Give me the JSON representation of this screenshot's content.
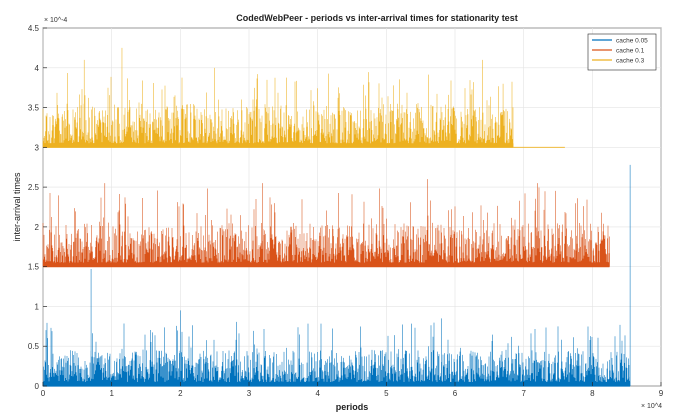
{
  "chart_data": {
    "type": "line",
    "title": "CodedWebPeer - periods vs inter-arrival times for stationarity test",
    "xlabel": "periods",
    "ylabel": "inter-arrival times",
    "x_exponent": "× 10^4",
    "y_exponent": "× 10^-4",
    "xlim": [
      0,
      9
    ],
    "ylim": [
      0,
      4.5
    ],
    "x_ticks": [
      "0",
      "1",
      "2",
      "3",
      "4",
      "5",
      "6",
      "7",
      "8",
      "9"
    ],
    "y_ticks": [
      "0",
      "0.5",
      "1",
      "1.5",
      "2",
      "2.5",
      "3",
      "3.5",
      "4",
      "4.5"
    ],
    "grid": true,
    "legend_position": "top-right",
    "series": [
      {
        "name": "cache 0.05",
        "color": "#0072BD",
        "x_end": 8.55,
        "baseline": 0.0,
        "typical_range": [
          0.05,
          0.45
        ],
        "peaks": [
          {
            "x": 0.7,
            "y": 1.47
          },
          {
            "x": 2.0,
            "y": 0.95
          },
          {
            "x": 5.8,
            "y": 0.85
          },
          {
            "x": 7.5,
            "y": 0.75
          },
          {
            "x": 8.55,
            "y": 2.78
          }
        ]
      },
      {
        "name": "cache 0.1",
        "color": "#D95319",
        "x_end": 8.25,
        "baseline": 1.5,
        "typical_range": [
          1.55,
          2.05
        ],
        "peaks": [
          {
            "x": 0.9,
            "y": 2.55
          },
          {
            "x": 3.2,
            "y": 2.55
          },
          {
            "x": 5.6,
            "y": 2.6
          },
          {
            "x": 7.2,
            "y": 2.55
          }
        ]
      },
      {
        "name": "cache 0.3",
        "color": "#EDB120",
        "x_end": 6.85,
        "baseline": 3.0,
        "typical_range": [
          3.05,
          3.55
        ],
        "tail_x_end": 7.6,
        "peaks": [
          {
            "x": 0.6,
            "y": 4.1
          },
          {
            "x": 1.15,
            "y": 4.25
          },
          {
            "x": 6.4,
            "y": 4.1
          },
          {
            "x": 6.7,
            "y": 3.8
          }
        ]
      }
    ]
  }
}
